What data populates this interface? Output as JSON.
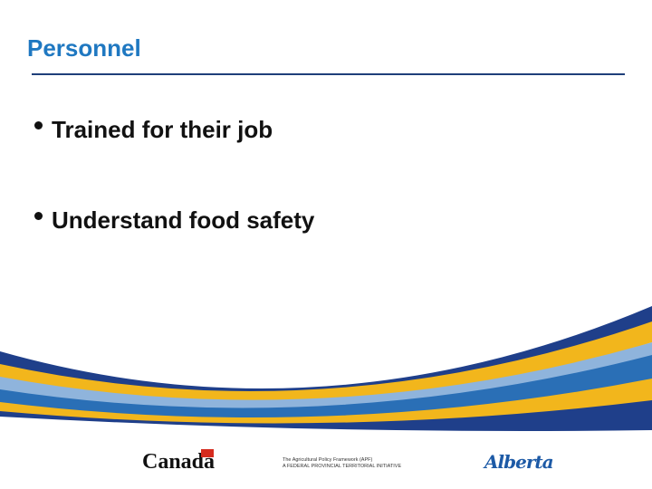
{
  "header": {
    "title": "Personnel"
  },
  "bullets": [
    "Trained for their job",
    "Understand food safety"
  ],
  "footer": {
    "canada": "Canada",
    "apf_line1": "The Agricultural Policy Framework (APF)",
    "apf_line2": "A FEDERAL PROVINCIAL TERRITORIAL INITIATIVE",
    "alberta": "Alberta"
  }
}
